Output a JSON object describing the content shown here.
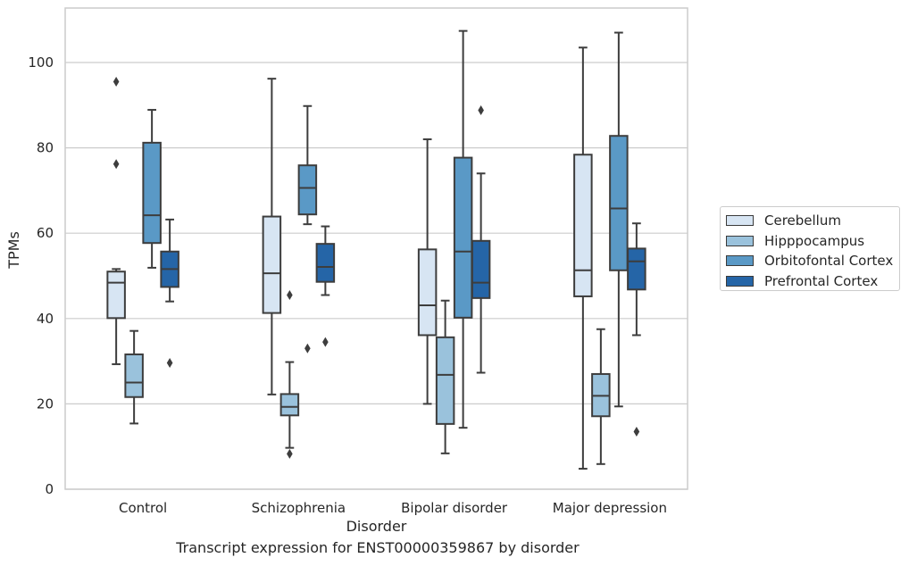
{
  "chart_data": {
    "type": "boxplot",
    "caption": "Transcript expression for ENST00000359867 by disorder",
    "xlabel": "Disorder",
    "ylabel": "TPMs",
    "ylim": [
      0,
      113
    ],
    "yticks": [
      0,
      20,
      40,
      60,
      80,
      100
    ],
    "grid": "horizontal",
    "legend_position": "right",
    "categories": [
      "Control",
      "Schizophrenia",
      "Bipolar disorder",
      "Major depression"
    ],
    "series": [
      {
        "name": "Cerebellum",
        "color": "#d7e5f3",
        "boxes": [
          {
            "whislo": 29.3,
            "q1": 40.1,
            "med": 48.4,
            "q3": 51.0,
            "whishi": 51.6,
            "fliers": [
              76.2,
              95.5
            ]
          },
          {
            "whislo": 22.2,
            "q1": 41.3,
            "med": 50.6,
            "q3": 63.9,
            "whishi": 96.2,
            "fliers": []
          },
          {
            "whislo": 20.0,
            "q1": 36.1,
            "med": 43.1,
            "q3": 56.2,
            "whishi": 82.0,
            "fliers": []
          },
          {
            "whislo": 4.8,
            "q1": 45.2,
            "med": 51.3,
            "q3": 78.4,
            "whishi": 103.5,
            "fliers": []
          }
        ]
      },
      {
        "name": "Hipppocampus",
        "color": "#9ac2dc",
        "boxes": [
          {
            "whislo": 15.4,
            "q1": 21.6,
            "med": 25.0,
            "q3": 31.6,
            "whishi": 37.1,
            "fliers": []
          },
          {
            "whislo": 9.7,
            "q1": 17.3,
            "med": 19.3,
            "q3": 22.3,
            "whishi": 29.8,
            "fliers": [
              8.3,
              45.5
            ]
          },
          {
            "whislo": 8.4,
            "q1": 15.3,
            "med": 26.8,
            "q3": 35.6,
            "whishi": 44.2,
            "fliers": []
          },
          {
            "whislo": 5.9,
            "q1": 17.1,
            "med": 21.9,
            "q3": 27.0,
            "whishi": 37.5,
            "fliers": []
          }
        ]
      },
      {
        "name": "Orbitofontal Cortex",
        "color": "#5a99c6",
        "boxes": [
          {
            "whislo": 51.9,
            "q1": 57.7,
            "med": 64.2,
            "q3": 81.2,
            "whishi": 88.9,
            "fliers": []
          },
          {
            "whislo": 62.1,
            "q1": 64.4,
            "med": 70.6,
            "q3": 75.9,
            "whishi": 89.8,
            "fliers": [
              33.0
            ]
          },
          {
            "whislo": 14.4,
            "q1": 40.2,
            "med": 55.7,
            "q3": 77.7,
            "whishi": 107.4,
            "fliers": []
          },
          {
            "whislo": 19.4,
            "q1": 51.3,
            "med": 65.8,
            "q3": 82.8,
            "whishi": 107.0,
            "fliers": []
          }
        ]
      },
      {
        "name": "Prefrontal Cortex",
        "color": "#2565a7",
        "boxes": [
          {
            "whislo": 44.0,
            "q1": 47.4,
            "med": 51.6,
            "q3": 55.7,
            "whishi": 63.2,
            "fliers": [
              29.6
            ]
          },
          {
            "whislo": 45.5,
            "q1": 48.6,
            "med": 52.1,
            "q3": 57.5,
            "whishi": 61.6,
            "fliers": [
              34.5
            ]
          },
          {
            "whislo": 27.3,
            "q1": 44.8,
            "med": 48.4,
            "q3": 58.2,
            "whishi": 74.0,
            "fliers": [
              88.8
            ]
          },
          {
            "whislo": 36.1,
            "q1": 46.8,
            "med": 53.4,
            "q3": 56.4,
            "whishi": 62.3,
            "fliers": [
              13.5
            ]
          }
        ]
      }
    ]
  }
}
